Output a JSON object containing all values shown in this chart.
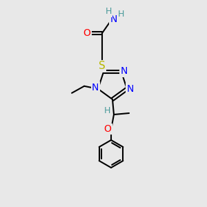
{
  "bg_color": "#e8e8e8",
  "atom_colors": {
    "C": "#000000",
    "H": "#4a9a9a",
    "N": "#0000ff",
    "O": "#ff0000",
    "S": "#b8b800"
  },
  "bond_color": "#000000",
  "bond_width": 1.5,
  "font_size_atom": 10,
  "font_size_H": 9,
  "figsize": [
    3.0,
    3.0
  ],
  "dpi": 100
}
